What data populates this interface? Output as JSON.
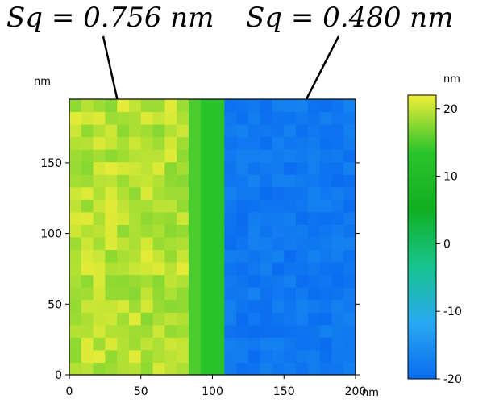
{
  "chart_data": {
    "type": "heatmap",
    "title": "",
    "annotations": [
      {
        "text": "Sq = 0.756 nm",
        "region": "left",
        "x": 40,
        "y": 168
      },
      {
        "text": "Sq = 0.480 nm",
        "region": "right",
        "x": 155,
        "y": 168
      }
    ],
    "x_unit": "nm",
    "y_unit": "nm",
    "colorbar_unit": "nm",
    "xlim": [
      0,
      200
    ],
    "ylim": [
      0,
      195
    ],
    "x_ticks": [
      "0",
      "50",
      "100",
      "150",
      "200"
    ],
    "y_ticks": [
      "0",
      "50",
      "100",
      "150"
    ],
    "colorbar_ticks": [
      "20",
      "10",
      "0",
      "-10",
      "-20"
    ],
    "colorbar_range": [
      -20,
      22
    ],
    "colormap": [
      "#0a6cf0",
      "#28a9f0",
      "#17c48c",
      "#10b020",
      "#2cc42c",
      "#f0ee38"
    ],
    "regions": [
      {
        "name": "left",
        "x_range": [
          0,
          82
        ],
        "mean_height": 20
      },
      {
        "name": "step",
        "x_range": [
          82,
          105
        ],
        "mean_height": 15
      },
      {
        "name": "right",
        "x_range": [
          105,
          200
        ],
        "mean_height": -18
      }
    ]
  }
}
